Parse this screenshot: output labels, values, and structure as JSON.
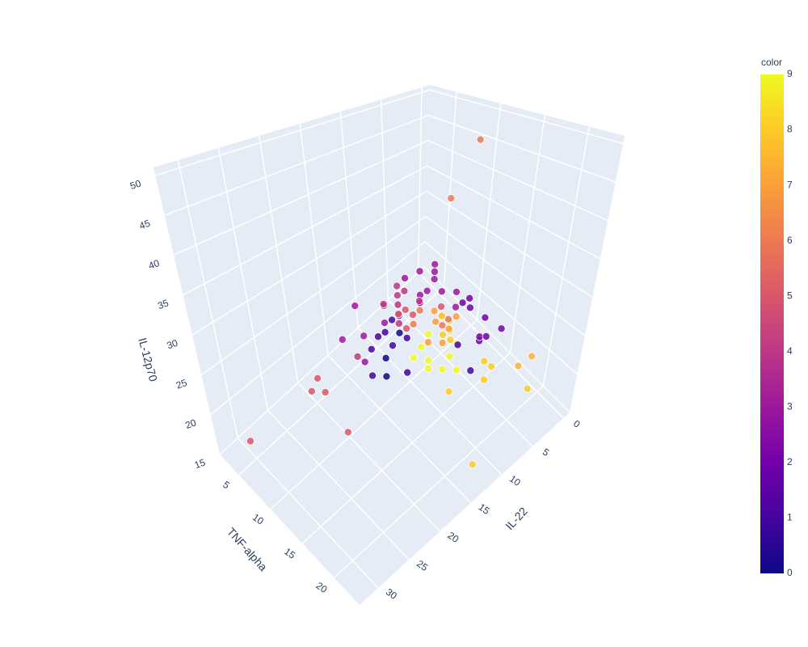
{
  "chart_data": {
    "type": "scatter3d",
    "x_title": "IL-22",
    "y_title": "TNF-alpha",
    "z_title": "IL-12p70",
    "xlim": [
      -1,
      33
    ],
    "ylim": [
      2,
      24
    ],
    "zlim": [
      15,
      51
    ],
    "xticks": [
      0,
      5,
      10,
      15,
      20,
      25,
      30
    ],
    "yticks": [
      5,
      10,
      15,
      20
    ],
    "zticks": [
      15,
      20,
      25,
      30,
      35,
      40,
      45,
      50
    ],
    "x": [
      0,
      8,
      32,
      25,
      24,
      24,
      23,
      14,
      6,
      6,
      8,
      11,
      12,
      11,
      15,
      14,
      15,
      14,
      13,
      16,
      16,
      16,
      16,
      15,
      14,
      21,
      20,
      21,
      20,
      19,
      18,
      19,
      18,
      17,
      17,
      17,
      18,
      16,
      14,
      13,
      12,
      12,
      11,
      10,
      9,
      8,
      9,
      9,
      11,
      11,
      12,
      11,
      13,
      10,
      11,
      13,
      12,
      13,
      19,
      22,
      20,
      21,
      16,
      15,
      12,
      12,
      13,
      14,
      15,
      17,
      13,
      12,
      12,
      12,
      13,
      12,
      14,
      15,
      14,
      12,
      11,
      11,
      11,
      14,
      15,
      14,
      14,
      15,
      16,
      16,
      13,
      12,
      10
    ],
    "y": [
      9,
      13,
      7,
      10,
      10,
      11,
      13,
      23,
      23,
      23,
      23,
      22,
      22,
      21,
      20,
      20,
      19,
      19,
      19,
      18,
      18,
      17,
      16,
      17,
      17,
      15,
      16,
      13,
      14,
      15,
      15,
      14,
      14,
      14,
      15,
      16,
      17,
      14,
      20,
      21,
      21,
      21,
      21,
      22,
      19,
      16,
      16,
      17,
      14,
      14,
      13,
      14,
      12,
      16,
      15,
      14,
      14,
      14,
      11,
      12,
      13,
      14,
      12,
      11,
      10,
      11,
      11,
      12,
      13,
      13,
      14,
      15,
      16,
      17,
      17,
      16,
      14,
      13,
      13,
      13,
      15,
      16,
      17,
      18,
      17,
      18,
      19,
      15,
      15,
      14,
      18,
      17,
      16
    ],
    "z": [
      45,
      42,
      20,
      24,
      25,
      24,
      20,
      18,
      22,
      26,
      26,
      27,
      26,
      27,
      25,
      27,
      27,
      28,
      29,
      27,
      28,
      29,
      27,
      30,
      31,
      27,
      27,
      28,
      29,
      28,
      29,
      30,
      30,
      31,
      30,
      30,
      27,
      31,
      30,
      27,
      30,
      30.5,
      30,
      31,
      30,
      30,
      30,
      30,
      35,
      34,
      34,
      33,
      33,
      32,
      32,
      32,
      32,
      31,
      32,
      30,
      30,
      28,
      31,
      30,
      30,
      30,
      30,
      30,
      30,
      30,
      30,
      30,
      30,
      30,
      30,
      30,
      30,
      30,
      30,
      30,
      30,
      29,
      30,
      30,
      29,
      29,
      30,
      30,
      30,
      30,
      30,
      29,
      30
    ],
    "color": [
      6,
      6,
      5,
      5,
      5,
      5,
      5,
      8,
      8,
      7.5,
      7.5,
      8,
      8,
      8,
      8,
      9,
      9,
      9,
      9,
      9,
      9,
      9,
      9,
      9,
      7,
      1,
      0,
      4,
      1,
      0,
      1,
      1,
      1,
      1,
      0,
      1,
      1,
      0.5,
      1,
      1,
      2,
      2,
      2,
      2,
      2,
      2,
      2,
      2,
      3,
      3,
      3,
      3,
      3,
      3,
      3,
      3,
      3,
      2.5,
      3,
      3,
      3,
      3,
      4,
      4,
      4,
      4,
      4,
      4,
      4,
      3,
      6,
      7,
      7,
      8,
      6,
      8,
      5,
      5,
      5,
      4,
      5,
      6,
      7,
      8,
      7,
      7,
      8,
      6,
      5,
      4,
      8,
      7,
      3
    ],
    "marker_opacity": 0.85,
    "colorbar": {
      "title": "color",
      "clim": [
        0,
        9
      ],
      "ticks": [
        0,
        1,
        2,
        3,
        4,
        5,
        6,
        7,
        8,
        9
      ],
      "colorscale": [
        [
          0,
          "#0d0887"
        ],
        [
          0.1111,
          "#46039f"
        ],
        [
          0.2222,
          "#7201a8"
        ],
        [
          0.3333,
          "#9c179e"
        ],
        [
          0.4444,
          "#bd3786"
        ],
        [
          0.5556,
          "#d8576b"
        ],
        [
          0.6667,
          "#ed7953"
        ],
        [
          0.7778,
          "#fb9f3a"
        ],
        [
          0.8889,
          "#fdca26"
        ],
        [
          1,
          "#f0f921"
        ]
      ]
    }
  }
}
